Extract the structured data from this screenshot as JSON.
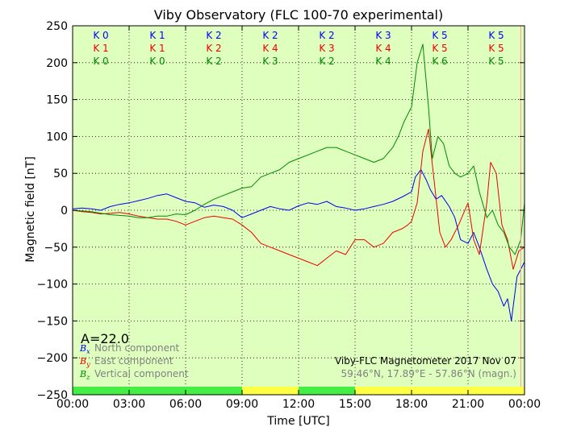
{
  "chart_data": {
    "type": "line",
    "title": "Viby Observatory (FLC 100-70 experimental)",
    "xlabel": "Time [UTC]",
    "ylabel": "Magnetic field [nT]",
    "xlim": [
      0,
      24
    ],
    "ylim": [
      -250,
      250
    ],
    "x_ticks": [
      {
        "value": 0,
        "label": "00:00"
      },
      {
        "value": 3,
        "label": "03:00"
      },
      {
        "value": 6,
        "label": "06:00"
      },
      {
        "value": 9,
        "label": "09:00"
      },
      {
        "value": 12,
        "label": "12:00"
      },
      {
        "value": 15,
        "label": "15:00"
      },
      {
        "value": 18,
        "label": "18:00"
      },
      {
        "value": 21,
        "label": "21:00"
      },
      {
        "value": 24,
        "label": "00:00"
      }
    ],
    "y_ticks": [
      250,
      200,
      150,
      100,
      50,
      0,
      -50,
      -100,
      -150,
      -200,
      -250
    ],
    "grid": true,
    "background": "#dfffbf",
    "k_indices": {
      "blue": [
        "K 0",
        "K 1",
        "K 2",
        "K 2",
        "K 2",
        "K 3",
        "K 5",
        "K 5"
      ],
      "red": [
        "K 1",
        "K 1",
        "K 2",
        "K 4",
        "K 3",
        "K 4",
        "K 5",
        "K 5"
      ],
      "green": [
        "K 0",
        "K 0",
        "K 2",
        "K 3",
        "K 2",
        "K 4",
        "K 6",
        "K 5"
      ]
    },
    "status_bar": [
      {
        "from": 0,
        "to": 9,
        "color": "#44ee44"
      },
      {
        "from": 9,
        "to": 12,
        "color": "#ffff44"
      },
      {
        "from": 12,
        "to": 15,
        "color": "#44ee44"
      },
      {
        "from": 15,
        "to": 24,
        "color": "#ffff44"
      }
    ],
    "current_time_marker": 23.8,
    "series": [
      {
        "name": "North component",
        "symbol": "B",
        "subscript": "x",
        "color": "#0000ee",
        "x": [
          0,
          0.5,
          1,
          1.5,
          2,
          2.5,
          3,
          3.5,
          4,
          4.5,
          5,
          5.5,
          6,
          6.5,
          7,
          7.5,
          8,
          8.5,
          9,
          9.5,
          10,
          10.5,
          11,
          11.5,
          12,
          12.5,
          13,
          13.5,
          14,
          14.5,
          15,
          15.5,
          16,
          16.5,
          17,
          17.5,
          18,
          18.2,
          18.5,
          18.8,
          19,
          19.3,
          19.6,
          20,
          20.3,
          20.6,
          21,
          21.3,
          21.6,
          22,
          22.3,
          22.6,
          22.9,
          23.1,
          23.3,
          23.6,
          24
        ],
        "y": [
          2,
          3,
          2,
          0,
          5,
          8,
          10,
          13,
          16,
          20,
          22,
          17,
          12,
          10,
          4,
          7,
          5,
          0,
          -10,
          -5,
          0,
          5,
          2,
          0,
          6,
          10,
          8,
          12,
          5,
          3,
          0,
          2,
          5,
          8,
          12,
          18,
          25,
          45,
          55,
          40,
          28,
          15,
          20,
          5,
          -10,
          -40,
          -45,
          -30,
          -50,
          -80,
          -100,
          -110,
          -130,
          -120,
          -150,
          -90,
          -70
        ]
      },
      {
        "name": "East component",
        "symbol": "B",
        "subscript": "y",
        "color": "#ee0000",
        "x": [
          0,
          0.5,
          1,
          1.5,
          2,
          2.5,
          3,
          3.5,
          4,
          4.5,
          5,
          5.5,
          6,
          6.5,
          7,
          7.5,
          8,
          8.5,
          9,
          9.5,
          10,
          10.5,
          11,
          11.5,
          12,
          12.5,
          13,
          13.5,
          14,
          14.5,
          15,
          15.5,
          16,
          16.5,
          17,
          17.5,
          17.8,
          18,
          18.3,
          18.6,
          18.9,
          19.2,
          19.5,
          19.8,
          20.1,
          20.5,
          21,
          21.3,
          21.6,
          22,
          22.2,
          22.5,
          22.8,
          23.1,
          23.4,
          23.7,
          24
        ],
        "y": [
          0,
          -2,
          -3,
          -5,
          -4,
          -3,
          -5,
          -8,
          -10,
          -12,
          -12,
          -15,
          -20,
          -15,
          -10,
          -8,
          -10,
          -12,
          -20,
          -30,
          -45,
          -50,
          -55,
          -60,
          -65,
          -70,
          -75,
          -65,
          -55,
          -60,
          -40,
          -40,
          -50,
          -45,
          -30,
          -25,
          -20,
          -15,
          10,
          80,
          110,
          40,
          -30,
          -50,
          -40,
          -20,
          10,
          -40,
          -60,
          10,
          65,
          50,
          -20,
          -40,
          -80,
          -55,
          -50
        ]
      },
      {
        "name": "Vertical component",
        "symbol": "B",
        "subscript": "z",
        "color": "#008800",
        "x": [
          0,
          0.5,
          1,
          1.5,
          2,
          2.5,
          3,
          3.5,
          4,
          4.5,
          5,
          5.5,
          6,
          6.5,
          7,
          7.5,
          8,
          8.5,
          9,
          9.5,
          10,
          10.5,
          11,
          11.5,
          12,
          12.5,
          13,
          13.5,
          14,
          14.5,
          15,
          15.5,
          16,
          16.5,
          17,
          17.3,
          17.6,
          18,
          18.3,
          18.6,
          18.9,
          19.1,
          19.4,
          19.7,
          20,
          20.3,
          20.6,
          21,
          21.3,
          21.6,
          22,
          22.3,
          22.6,
          22.9,
          23.2,
          23.5,
          23.8,
          24
        ],
        "y": [
          0,
          -1,
          -2,
          -4,
          -6,
          -7,
          -8,
          -10,
          -10,
          -8,
          -8,
          -5,
          -6,
          0,
          8,
          15,
          20,
          25,
          30,
          32,
          45,
          50,
          55,
          65,
          70,
          75,
          80,
          85,
          85,
          80,
          75,
          70,
          65,
          70,
          85,
          100,
          120,
          140,
          200,
          225,
          140,
          70,
          100,
          90,
          60,
          50,
          45,
          50,
          60,
          25,
          -10,
          0,
          -20,
          -30,
          -50,
          -60,
          -40,
          10
        ]
      }
    ],
    "annotations": {
      "a_index": "A=22.0",
      "credit": "Viby-FLC Magnetometer 2017 Nov 07",
      "coordinates": "59.46°N, 17.89°E - 57.86°N (magn.)"
    }
  }
}
